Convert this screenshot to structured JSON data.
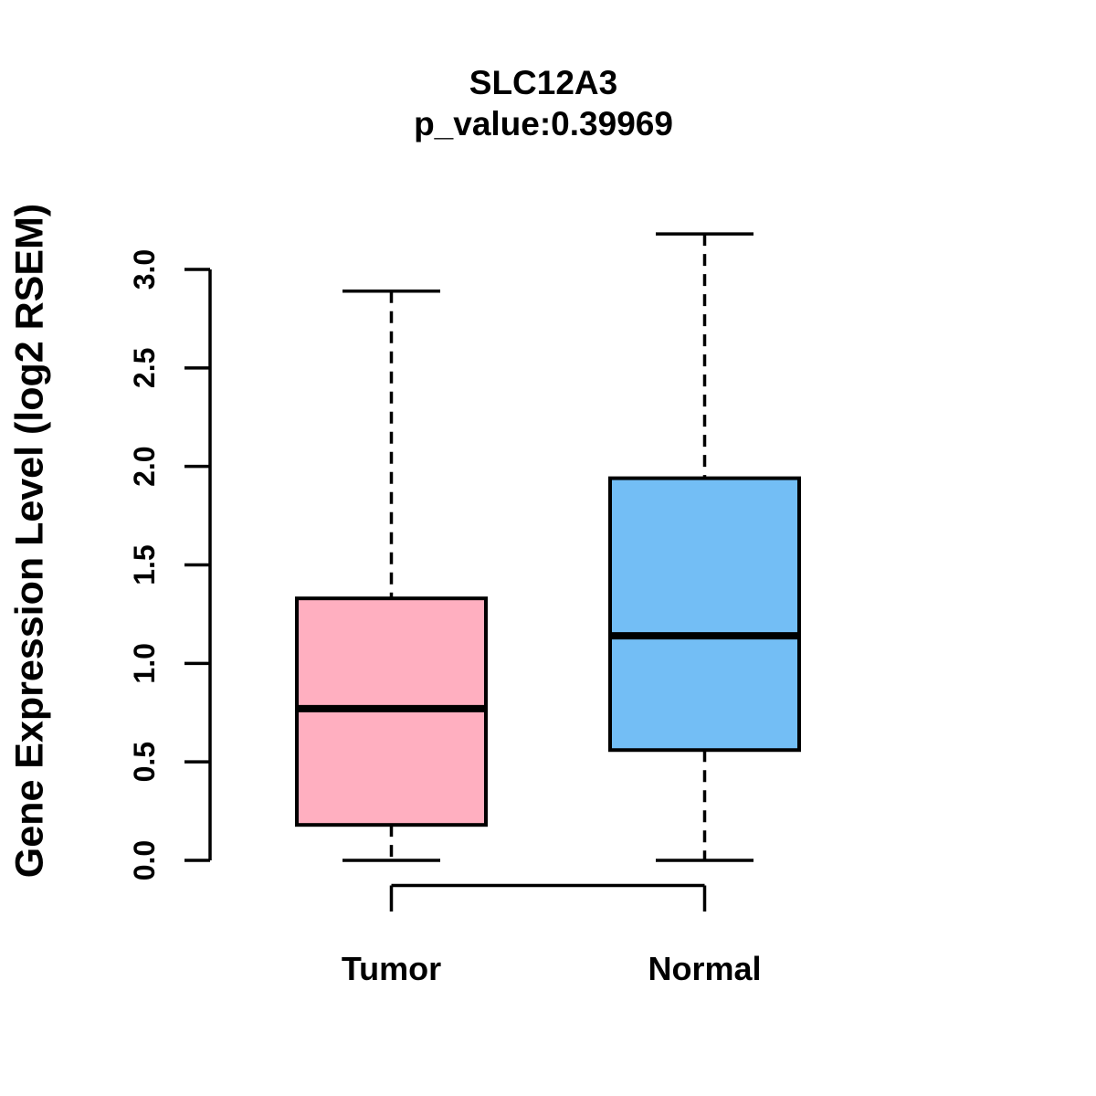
{
  "chart_data": {
    "type": "boxplot",
    "title": "SLC12A3",
    "p_value_label": "p_value:0.39969",
    "p_value": 0.39969,
    "ylabel": "Gene Expression Level (log2 RSEM)",
    "ylim": [
      0.0,
      3.2
    ],
    "yticks": [
      0.0,
      0.5,
      1.0,
      1.5,
      2.0,
      2.5,
      3.0
    ],
    "ytick_labels": [
      "0.0",
      "0.5",
      "1.0",
      "1.5",
      "2.0",
      "2.5",
      "3.0"
    ],
    "grid": false,
    "legend": "none",
    "categories": [
      "Tumor",
      "Normal"
    ],
    "series": [
      {
        "name": "Tumor",
        "fill_color": "#FFAFC0",
        "whisker_low": 0.0,
        "q1": 0.18,
        "median": 0.77,
        "q3": 1.33,
        "whisker_high": 2.89
      },
      {
        "name": "Normal",
        "fill_color": "#73BEF5",
        "whisker_low": 0.0,
        "q1": 0.56,
        "median": 1.14,
        "q3": 1.94,
        "whisker_high": 3.18
      }
    ],
    "line_color": "#000000",
    "whisker_style": "dashed"
  }
}
